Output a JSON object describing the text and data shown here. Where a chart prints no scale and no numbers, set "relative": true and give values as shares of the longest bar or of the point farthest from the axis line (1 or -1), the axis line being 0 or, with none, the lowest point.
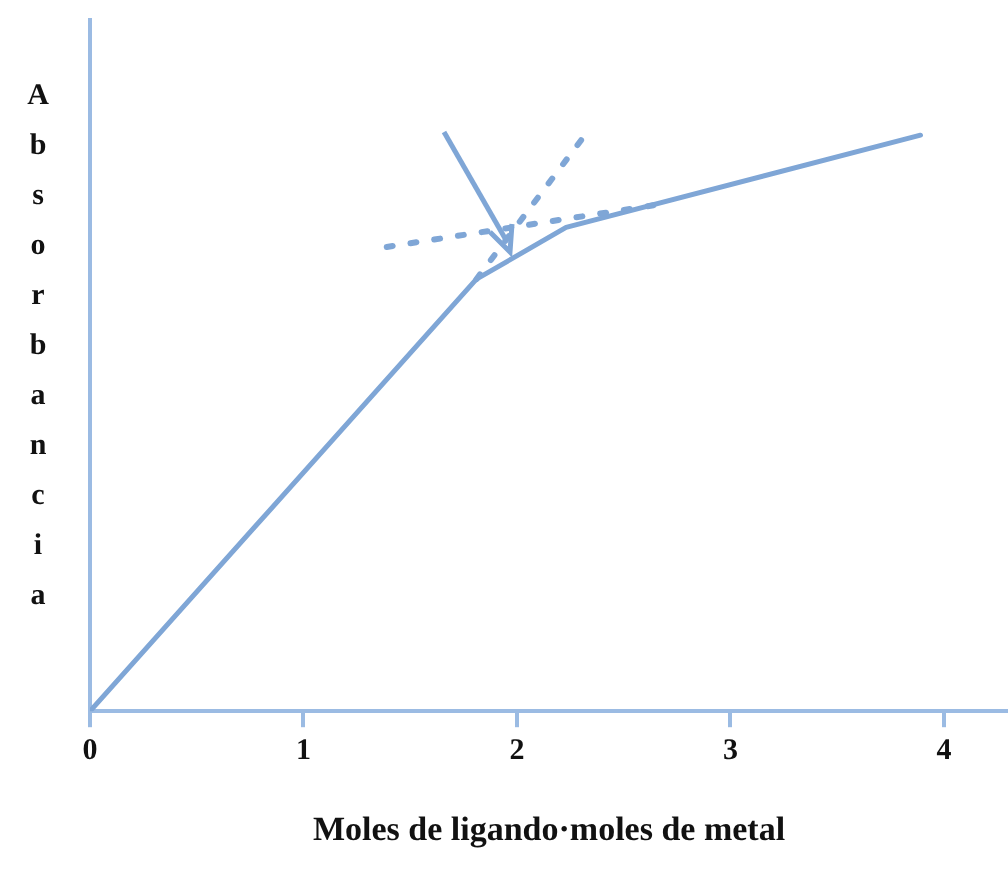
{
  "chart_data": {
    "type": "line",
    "xlabel": "Moles de ligando·moles de metal",
    "ylabel": "Absorbancia",
    "relative": true,
    "xlim": [
      0,
      4.3
    ],
    "xticks": [
      0,
      1,
      2,
      3,
      4
    ],
    "grid": false,
    "legend": false,
    "marker": "none",
    "series": [
      {
        "color": "#7fa6d6",
        "x": [
          0,
          1.81,
          2.23,
          3.89
        ],
        "values": [
          0,
          0.75,
          0.84,
          1
        ],
        "line_style": "solid"
      },
      {
        "color": "#7fa6d6",
        "x": [
          1.81,
          2.31
        ],
        "values": [
          0.75,
          0.996
        ],
        "line_style": "dotted"
      },
      {
        "color": "#7fa6d6",
        "x": [
          1.39,
          2.65
        ],
        "values": [
          0.806,
          0.879
        ],
        "line_style": "dotted"
      }
    ]
  }
}
